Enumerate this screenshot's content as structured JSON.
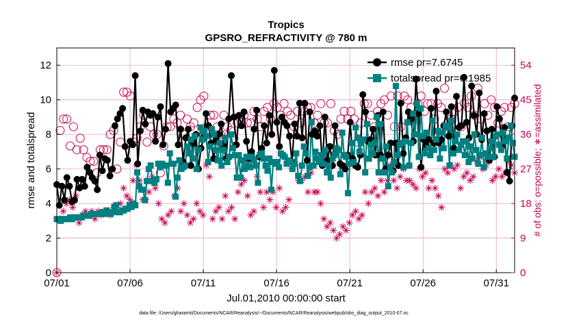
{
  "chart_data": {
    "type": "line",
    "title": "Tropics",
    "subtitle": "GPSRO_REFRACTIVITY @ 780 m",
    "xlabel": "Jul.01,2010 00:00:00 start",
    "ylabel": "rmse and totalspread",
    "ylabel_right": "# of obs: o=possible; ∗=assimilated",
    "footnote": "data file: /Users/gharamti/Documents/NCAR/Reanalysis/~/Documents/NCAR/Reanalysis/webpub/obs_diag_output_2010-07.nc",
    "x_tick_labels": [
      "07/01",
      "07/06",
      "07/11",
      "07/16",
      "07/21",
      "07/26",
      "07/31"
    ],
    "x_tick_days": [
      1,
      6,
      11,
      16,
      21,
      26,
      31
    ],
    "xlim": [
      1,
      32.25
    ],
    "ylim": [
      0,
      13
    ],
    "y_ticks": [
      0,
      2,
      4,
      6,
      8,
      10,
      12
    ],
    "ylim_right": [
      0,
      58.5
    ],
    "y_ticks_right": [
      0,
      9,
      18,
      27,
      36,
      45,
      54
    ],
    "legend_position": "top-right",
    "colors": {
      "rmse": "#000000",
      "totalspread": "#008080",
      "obs": "#c8004f",
      "grid": "#e7a3c0"
    },
    "series": [
      {
        "name": "rmse pr=7.6745",
        "axis": "left",
        "values": [
          5.1,
          3.9,
          5.0,
          4.2,
          5.5,
          5.0,
          4.1,
          4.2,
          5.4,
          4.9,
          5.4,
          5.0,
          6.1,
          5.8,
          5.5,
          5.3,
          4.8,
          6.8,
          5.9,
          6.6,
          6.5,
          5.6,
          6.0,
          8.5,
          8.9,
          9.2,
          9.5,
          7.3,
          6.5,
          7.6,
          7.4,
          11.4,
          6.3,
          8.2,
          9.4,
          8.6,
          9.3,
          9.1,
          9.2,
          7.6,
          9.0,
          9.6,
          7.4,
          8.3,
          12.1,
          9.3,
          9.5,
          9.7,
          7.4,
          8.3,
          6.4,
          7.8,
          8.3,
          6.2,
          7.5,
          8.0,
          6.0,
          7.2,
          7.8,
          9.2,
          8.5,
          7.5,
          6.6,
          7.7,
          8.0,
          8.6,
          7.3,
          6.6,
          8.9,
          11.4,
          9.0,
          7.4,
          9.1,
          8.5,
          9.3,
          7.6,
          6.6,
          7.0,
          8.3,
          9.4,
          6.7,
          7.2,
          8.5,
          7.5,
          9.1,
          8.0,
          11.7,
          8.7,
          7.3,
          9.0,
          8.7,
          8.5,
          7.9,
          6.4,
          8.6,
          7.9,
          9.8,
          7.8,
          9.8,
          6.5,
          9.3,
          8.0,
          8.2,
          7.9,
          8.5,
          6.2,
          9.0,
          6.5,
          7.3,
          6.2,
          8.5,
          7.1,
          6.3,
          6.2,
          6.0,
          6.8,
          8.7,
          6.6,
          6.2,
          6.1,
          6.8,
          10.3,
          9.3,
          7.6,
          7.7,
          8.3,
          6.8,
          9.1,
          6.8,
          9.3,
          6.0,
          6.8,
          7.5,
          5.9,
          7.5,
          6.2,
          9.8,
          6.9,
          7.8,
          9.3,
          8.9,
          7.6,
          11.2,
          9.2,
          6.1,
          7.7,
          7.4,
          7.7,
          9.5,
          7.5,
          10.5,
          7.5,
          7.7,
          8.5,
          9.3,
          7.9,
          9.6,
          7.2,
          10.2,
          8.4,
          8.5,
          11.3,
          8.7,
          7.8,
          10.8,
          9.1,
          8.0,
          10.4,
          7.7,
          9.2,
          8.2,
          6.5,
          8.3,
          6.7,
          9.6,
          8.9,
          7.3,
          8.4,
          5.8,
          5.3,
          8.5,
          10.1
        ]
      },
      {
        "name": "totalspread pr=6.1985",
        "axis": "left",
        "values": [
          3.1,
          3.1,
          3.0,
          3.1,
          3.1,
          3.1,
          3.1,
          3.2,
          3.1,
          3.2,
          3.2,
          3.2,
          3.2,
          3.2,
          3.3,
          3.3,
          3.3,
          3.3,
          3.4,
          3.4,
          3.4,
          3.4,
          3.4,
          3.4,
          3.5,
          3.4,
          3.6,
          3.5,
          3.4,
          3.5,
          3.8,
          3.9,
          3.5,
          3.5,
          3.6,
          3.6,
          3.7,
          3.7,
          3.9,
          3.8,
          4.0,
          3.9,
          5.8,
          5.0,
          4.8,
          4.8,
          4.2,
          5.3,
          6.0,
          6.2,
          5.3,
          5.2,
          5.4,
          6.3,
          6.1,
          6.3,
          6.2,
          6.2,
          5.2,
          6.9,
          6.3,
          6.3,
          4.4,
          5.5,
          6.5,
          6.0,
          6.1,
          6.2,
          7.3,
          6.9,
          7.7,
          6.6,
          7.9,
          6.0,
          7.1,
          8.4,
          7.7,
          8.2,
          7.9,
          6.4,
          7.3,
          8.3,
          8.0,
          7.1,
          6.5,
          7.5,
          6.2,
          7.1,
          7.8,
          6.4,
          6.7,
          8.0,
          7.2,
          6.8,
          5.5,
          6.8,
          5.5,
          6.5,
          6.0,
          6.7,
          6.2,
          6.1,
          6.7,
          6.5,
          6.2,
          5.2,
          6.8,
          6.9,
          6.6,
          6.2,
          5.9,
          6.6,
          4.8,
          6.4,
          6.3,
          6.4,
          6.1,
          6.9,
          6.8,
          6.7,
          6.3,
          6.5,
          6.4,
          6.0,
          6.3,
          6.9,
          5.6,
          5.3,
          6.2,
          7.3,
          6.9,
          5.6,
          6.1,
          8.7,
          6.2,
          7.0,
          6.6,
          6.4,
          6.8,
          6.3,
          7.1,
          5.8,
          6.2,
          5.5,
          6.6,
          6.8,
          7.2,
          7.1,
          5.7,
          8.1,
          6.8,
          6.7,
          4.6,
          6.3,
          7.5,
          6.4,
          8.4,
          7.8,
          7.0,
          7.5,
          7.7,
          5.8,
          8.6,
          6.6,
          7.4,
          6.9,
          7.5,
          9.0,
          5.8,
          8.6,
          6.6,
          5.8,
          7.3,
          5.0,
          6.1,
          5.8,
          6.4,
          10.8,
          6.8,
          7.4,
          7.5,
          6.1,
          7.6,
          8.7,
          6.2,
          7.5,
          9.2,
          8.0,
          9.8,
          6.7,
          9.5,
          7.9,
          6.9,
          8.1,
          7.2,
          6.8,
          8.8,
          7.1,
          7.7,
          8.2,
          6.6,
          8.1,
          7.2,
          8.5,
          8.4,
          6.2,
          8.8,
          6.9,
          7.6,
          8.0,
          7.1,
          7.4,
          7.6,
          6.8,
          7.6,
          6.4,
          7.3,
          6.6,
          8.0,
          7.1,
          6.3,
          6.8,
          7.8,
          6.1,
          6.9,
          6.7,
          7.2,
          7.6,
          6.7,
          7.9,
          8.0,
          7.4,
          7.1,
          8.1,
          7.6,
          6.6,
          7.8,
          8.5,
          7.5,
          6.7
        ]
      },
      {
        "name": "possible obs",
        "axis": "right",
        "marker": "circle",
        "values": [
          0,
          37,
          40,
          40,
          33,
          38,
          32,
          35,
          32,
          30,
          29,
          29,
          26,
          32,
          32,
          32,
          36,
          37,
          27,
          34,
          47,
          47,
          46,
          34,
          35,
          38,
          41,
          34,
          38,
          36,
          36,
          26,
          33,
          38,
          38,
          40,
          39,
          41,
          36,
          40,
          38,
          39,
          43,
          45,
          46,
          38,
          41,
          41,
          38,
          36,
          41,
          38,
          37,
          35,
          39,
          40,
          41,
          39,
          39,
          42,
          40,
          38,
          42,
          43,
          40,
          44,
          43,
          41,
          44,
          42,
          41,
          38,
          42,
          39,
          42,
          43,
          43,
          39,
          41,
          44,
          39,
          39,
          44,
          37,
          36,
          40,
          42,
          40,
          42,
          40,
          34,
          39,
          44,
          44,
          41,
          38,
          42,
          44,
          45,
          41,
          46,
          38,
          46,
          38,
          46,
          45,
          43,
          40,
          44,
          46,
          42,
          44,
          44,
          40,
          44,
          43,
          48,
          39,
          40,
          42,
          43,
          38,
          44,
          43,
          46,
          41,
          48,
          40,
          44,
          41,
          45,
          43,
          39,
          42,
          43,
          38,
          43,
          44
        ]
      },
      {
        "name": "assimilated obs",
        "axis": "right",
        "marker": "asterisk",
        "values": [
          0,
          14,
          16,
          18,
          19,
          17,
          20,
          13,
          15,
          16,
          15,
          16,
          14,
          16,
          15,
          16,
          16,
          15,
          17,
          16,
          18,
          22,
          20,
          19,
          24,
          28,
          24,
          19,
          19,
          21,
          25,
          22,
          18,
          14,
          13,
          15,
          16,
          20,
          22,
          16,
          18,
          15,
          13,
          14,
          18,
          16,
          15,
          28,
          25,
          14,
          16,
          17,
          14,
          20,
          16,
          17,
          14,
          21,
          23,
          24,
          20,
          15,
          16,
          25,
          21,
          17,
          21,
          19,
          21,
          17,
          22,
          16,
          17,
          19,
          27,
          28,
          24,
          24,
          25,
          21,
          26,
          21,
          21,
          18,
          14,
          12,
          13,
          11,
          9,
          10,
          12,
          11,
          13,
          15,
          16,
          14,
          15,
          21,
          18,
          21,
          22,
          20,
          24,
          21,
          24,
          28,
          24,
          22,
          25,
          27,
          24,
          24,
          23,
          22,
          27,
          25,
          26,
          22,
          24,
          22,
          20,
          17,
          27,
          26,
          28,
          27,
          28,
          22,
          25,
          26,
          24,
          25,
          29,
          30,
          27,
          28,
          29,
          24,
          25,
          27,
          25,
          26,
          29,
          28,
          26
        ]
      }
    ]
  }
}
